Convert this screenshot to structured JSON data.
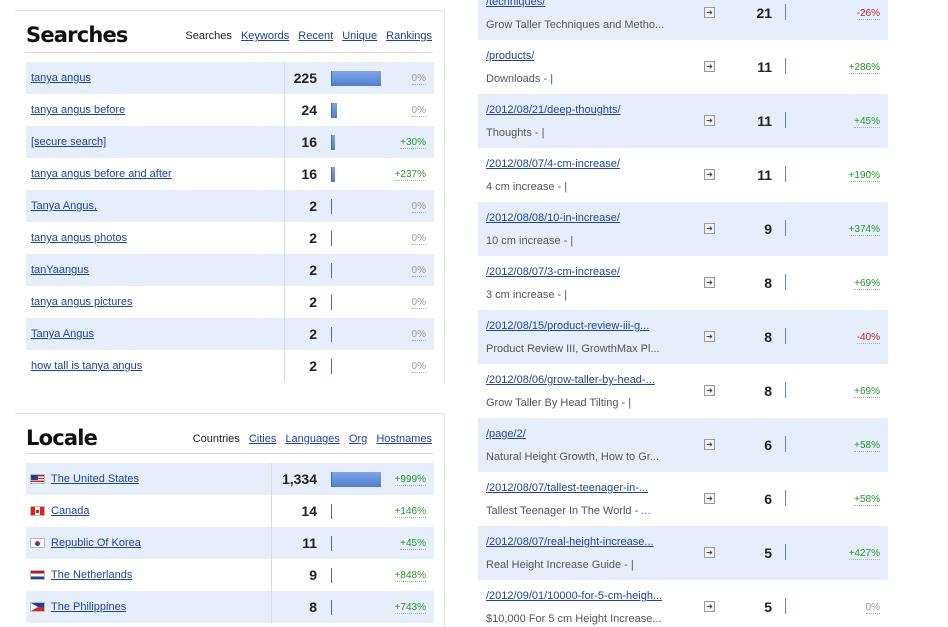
{
  "searches": {
    "title": "Searches",
    "tabs": [
      "Searches",
      "Keywords",
      "Recent",
      "Unique",
      "Rankings"
    ],
    "rows": [
      {
        "term": "tanya angus",
        "count": "225",
        "bar": 1.0,
        "change": "0%",
        "dir": "zero"
      },
      {
        "term": "tanya angus before",
        "count": "24",
        "bar": 0.11,
        "change": "0%",
        "dir": "zero"
      },
      {
        "term": "[secure search]",
        "count": "16",
        "bar": 0.07,
        "change": "+30%",
        "dir": "pos"
      },
      {
        "term": "tanya angus before and after",
        "count": "16",
        "bar": 0.07,
        "change": "+237%",
        "dir": "pos"
      },
      {
        "term": "Tanya Angus,",
        "count": "2",
        "bar": 0.01,
        "change": "0%",
        "dir": "zero"
      },
      {
        "term": "tanya angus photos",
        "count": "2",
        "bar": 0.01,
        "change": "0%",
        "dir": "zero"
      },
      {
        "term": "tanYaangus",
        "count": "2",
        "bar": 0.01,
        "change": "0%",
        "dir": "zero"
      },
      {
        "term": "tanya angus pictures",
        "count": "2",
        "bar": 0.01,
        "change": "0%",
        "dir": "zero"
      },
      {
        "term": "Tanya Angus",
        "count": "2",
        "bar": 0.01,
        "change": "0%",
        "dir": "zero"
      },
      {
        "term": "how tall is tanya angus",
        "count": "2",
        "bar": 0.01,
        "change": "0%",
        "dir": "zero"
      }
    ]
  },
  "locale": {
    "title": "Locale",
    "tabs": [
      "Countries",
      "Cities",
      "Languages",
      "Org",
      "Hostnames"
    ],
    "rows": [
      {
        "country": "The United States",
        "flag": "us-flag-icon",
        "count": "1,334",
        "bar": 1.0,
        "change": "+999%",
        "dir": "pos"
      },
      {
        "country": "Canada",
        "flag": "ca-flag-icon",
        "count": "14",
        "bar": 0.01,
        "change": "+146%",
        "dir": "pos"
      },
      {
        "country": "Republic Of Korea",
        "flag": "kr-flag-icon",
        "count": "11",
        "bar": 0.01,
        "change": "+45%",
        "dir": "pos"
      },
      {
        "country": "The Netherlands",
        "flag": "nl-flag-icon",
        "count": "9",
        "bar": 0.01,
        "change": "+848%",
        "dir": "pos"
      },
      {
        "country": "The Philippines",
        "flag": "ph-flag-icon",
        "count": "8",
        "bar": 0.01,
        "change": "+743%",
        "dir": "pos"
      }
    ]
  },
  "pages": {
    "rows": [
      {
        "path": "/techniques/",
        "title": "Grow Taller Techniques and Metho...",
        "count": "21",
        "change": "-26%",
        "dir": "neg"
      },
      {
        "path": "/products/",
        "title": "Downloads - |",
        "count": "11",
        "change": "+286%",
        "dir": "pos"
      },
      {
        "path": "/2012/08/21/deep-thoughts/",
        "title": "Thoughts - |",
        "count": "11",
        "change": "+45%",
        "dir": "pos"
      },
      {
        "path": "/2012/08/07/4-cm-increase/",
        "title": "4 cm increase - |",
        "count": "11",
        "change": "+190%",
        "dir": "pos"
      },
      {
        "path": "/2012/08/08/10-in-increase/",
        "title": "10 cm increase - |",
        "count": "9",
        "change": "+374%",
        "dir": "pos"
      },
      {
        "path": "/2012/08/07/3-cm-increase/",
        "title": "3 cm increase - |",
        "count": "8",
        "change": "+69%",
        "dir": "pos"
      },
      {
        "path": "/2012/08/15/product-review-iii-g...",
        "title": "Product Review III, GrowthMax Pl...",
        "count": "8",
        "change": "-40%",
        "dir": "neg"
      },
      {
        "path": "/2012/08/06/grow-taller-by-head-...",
        "title": "Grow Taller By Head Tilting - |",
        "count": "8",
        "change": "+69%",
        "dir": "pos"
      },
      {
        "path": "/page/2/",
        "title": "Natural Height Growth, How to Gr...",
        "count": "6",
        "change": "+58%",
        "dir": "pos"
      },
      {
        "path": "/2012/08/07/tallest-teenager-in-...",
        "title": "Tallest Teenager In The World - ...",
        "count": "6",
        "change": "+58%",
        "dir": "pos"
      },
      {
        "path": "/2012/08/07/real-height-increase...",
        "title": "Real Height Increase Guide - |",
        "count": "5",
        "change": "+427%",
        "dir": "pos"
      },
      {
        "path": "/2012/09/01/10000-for-5-cm-heigh...",
        "title": "$10,000 For 5 cm Height Increase...",
        "count": "5",
        "change": "0%",
        "dir": "zero"
      }
    ]
  }
}
